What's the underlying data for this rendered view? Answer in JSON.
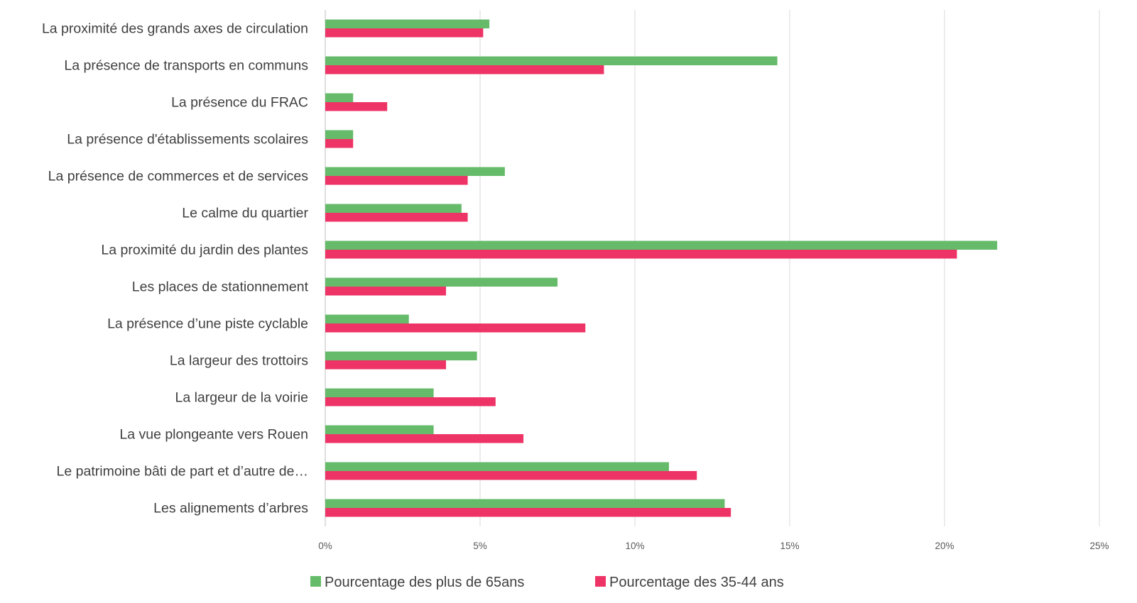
{
  "chart_data": {
    "type": "bar",
    "orientation": "horizontal",
    "categories": [
      "La proximité des grands axes de circulation",
      "La présence de transports en communs",
      "La présence du FRAC",
      "La présence d'établissements scolaires",
      "La présence de commerces et de services",
      "Le calme du quartier",
      "La proximité du jardin des plantes",
      "Les places de stationnement",
      "La présence d’une piste cyclable",
      "La largeur des trottoirs",
      "La largeur de la voirie",
      "La vue plongeante vers Rouen",
      "Le patrimoine bâti de part et d’autre de…",
      "Les alignements d’arbres"
    ],
    "series": [
      {
        "name": "Pourcentage des plus de 65ans",
        "color": "#66bb6a",
        "values": [
          5.3,
          14.6,
          0.9,
          0.9,
          5.8,
          4.4,
          21.7,
          7.5,
          2.7,
          4.9,
          3.5,
          3.5,
          11.1,
          12.9
        ]
      },
      {
        "name": "Pourcentage des 35-44 ans",
        "color": "#ee3366",
        "values": [
          5.1,
          9.0,
          2.0,
          0.9,
          4.6,
          4.6,
          20.4,
          3.9,
          8.4,
          3.9,
          5.5,
          6.4,
          12.0,
          13.1
        ]
      }
    ],
    "xticks": [
      "0%",
      "5%",
      "10%",
      "15%",
      "20%",
      "25%"
    ],
    "xlim": [
      0,
      25
    ],
    "grid": true,
    "legend_position": "bottom",
    "title": "",
    "xlabel": "",
    "ylabel": ""
  }
}
